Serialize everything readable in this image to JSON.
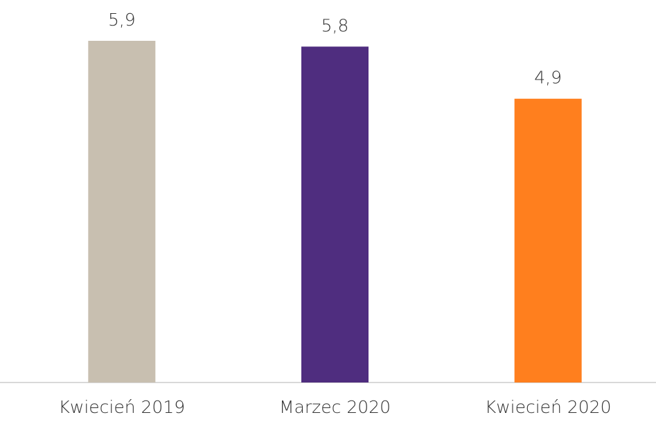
{
  "chart_data": {
    "type": "bar",
    "categories": [
      "Kwiecień 2019",
      "Marzec 2020",
      "Kwiecień 2020"
    ],
    "values": [
      5.9,
      5.8,
      4.9
    ],
    "value_labels": [
      "5,9",
      "5,8",
      "4,9"
    ],
    "colors": [
      "#c8bfb0",
      "#4f2d7f",
      "#ff7f1e"
    ]
  }
}
